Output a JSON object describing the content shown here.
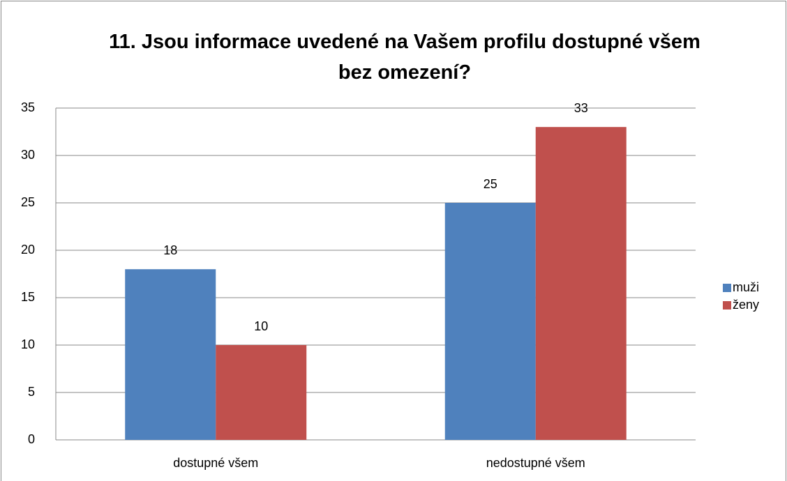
{
  "chart_data": {
    "type": "bar",
    "title": "11. Jsou informace uvedené na Vašem profilu dostupné všem bez omezení?",
    "categories": [
      "dostupné všem",
      "nedostupné všem"
    ],
    "series": [
      {
        "name": "muži",
        "color": "#4f81bd",
        "values": [
          18,
          25
        ]
      },
      {
        "name": "ženy",
        "color": "#c0504d",
        "values": [
          10,
          33
        ]
      }
    ],
    "ylim": [
      0,
      35
    ],
    "yticks": [
      0,
      5,
      10,
      15,
      20,
      25,
      30,
      35
    ],
    "grid": true,
    "legend": "right"
  }
}
